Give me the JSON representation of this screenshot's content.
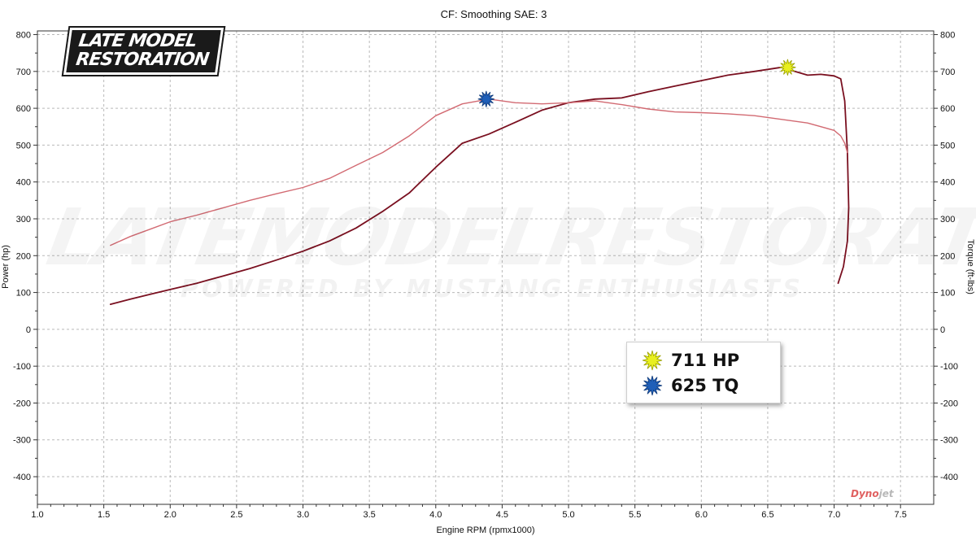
{
  "chart_data": {
    "type": "line",
    "title": "CF: Smoothing SAE: 3",
    "xlabel": "Engine RPM (rpmx1000)",
    "ylabel_left": "Power (hp)",
    "ylabel_right": "Torque (ft-lbs)",
    "xlim": [
      1.0,
      7.75
    ],
    "ylim": [
      -475,
      810
    ],
    "x_ticks": [
      "1.0",
      "1.5",
      "2.0",
      "2.5",
      "3.0",
      "3.5",
      "4.0",
      "4.5",
      "5.0",
      "5.5",
      "6.0",
      "6.5",
      "7.0",
      "7.5"
    ],
    "y_ticks": [
      "800",
      "700",
      "600",
      "500",
      "400",
      "300",
      "200",
      "100",
      "0",
      "-100",
      "-200",
      "-300",
      "-400"
    ],
    "grid": true,
    "series": [
      {
        "color": "#7a1020",
        "x": [
          1.55,
          1.7,
          1.85,
          2.0,
          2.2,
          2.4,
          2.6,
          2.8,
          3.0,
          3.2,
          3.4,
          3.6,
          3.8,
          4.0,
          4.2,
          4.4,
          4.6,
          4.8,
          5.0,
          5.2,
          5.4,
          5.6,
          5.8,
          6.0,
          6.2,
          6.4,
          6.6,
          6.8,
          6.9,
          7.0,
          7.05,
          7.08,
          7.1,
          7.11,
          7.1,
          7.07,
          7.03
        ],
        "y": [
          68,
          82,
          95,
          108,
          125,
          145,
          165,
          188,
          212,
          240,
          275,
          320,
          370,
          440,
          505,
          530,
          562,
          595,
          615,
          625,
          628,
          645,
          660,
          675,
          690,
          700,
          711,
          690,
          692,
          688,
          680,
          620,
          480,
          330,
          240,
          170,
          125
        ]
      },
      {
        "color": "#d26a72",
        "x": [
          1.55,
          1.7,
          1.85,
          2.0,
          2.2,
          2.4,
          2.6,
          2.8,
          3.0,
          3.2,
          3.4,
          3.6,
          3.8,
          4.0,
          4.2,
          4.4,
          4.6,
          4.8,
          5.0,
          5.2,
          5.4,
          5.6,
          5.8,
          6.0,
          6.2,
          6.4,
          6.6,
          6.8,
          7.0,
          7.05,
          7.08,
          7.1
        ],
        "y": [
          228,
          252,
          272,
          292,
          310,
          330,
          350,
          368,
          385,
          410,
          445,
          480,
          525,
          580,
          612,
          625,
          615,
          612,
          615,
          620,
          610,
          598,
          590,
          588,
          585,
          580,
          570,
          560,
          540,
          525,
          505,
          480
        ]
      }
    ],
    "markers": [
      {
        "x": 6.65,
        "y": 711,
        "color": "#e8ef1e"
      },
      {
        "x": 4.38,
        "y": 625,
        "color": "#1f5fb8"
      }
    ],
    "legend": {
      "position": "bottom-right",
      "entries": [
        {
          "label": "711 HP",
          "color": "#e8ef1e"
        },
        {
          "label": "625 TQ",
          "color": "#1f5fb8"
        }
      ]
    }
  },
  "logo": {
    "line1": "LATE MODEL",
    "line2": "RESTORATION"
  },
  "watermark": {
    "line1": "LATEMODELRESTORATION",
    "line2": "POWERED BY MUSTANG ENTHUSIASTS"
  },
  "brand": {
    "part1": "Dyno",
    "part2": "jet"
  }
}
